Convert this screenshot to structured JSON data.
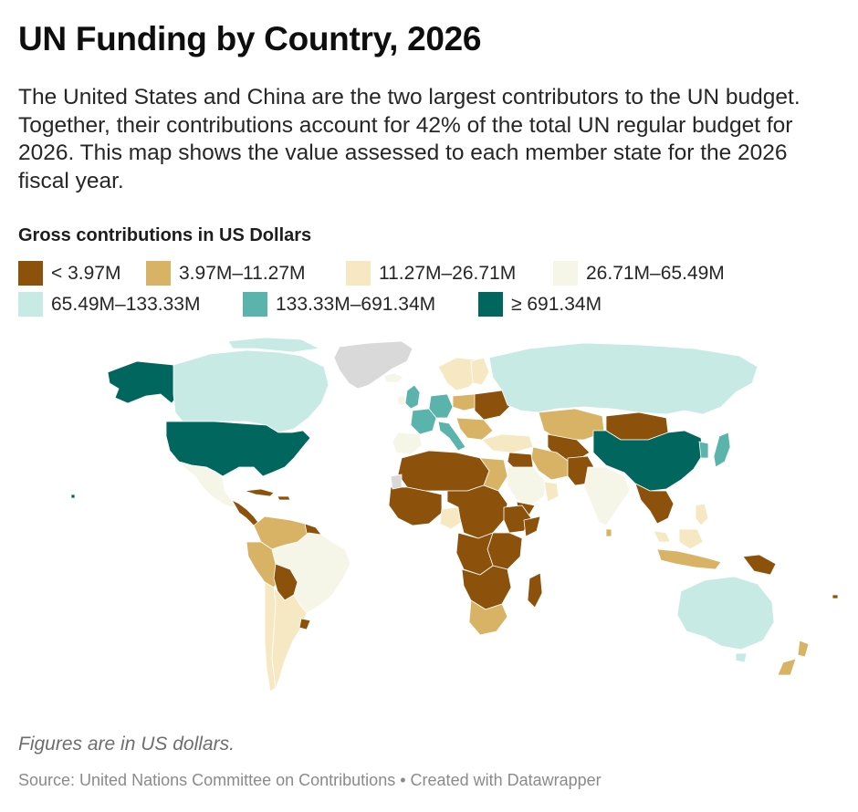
{
  "header": {
    "title": "UN Funding by Country, 2026",
    "description": "The United States and China are the two largest contributors to the UN budget. Together, their contributions account for 42% of the total UN regular budget for 2026. This map shows the value assessed to each member state for the 2026 fiscal year."
  },
  "legend": {
    "title": "Gross contributions in US Dollars",
    "items": [
      {
        "label": "< 3.97M",
        "color": "#8c510a"
      },
      {
        "label": "3.97M–11.27M",
        "color": "#d8b365"
      },
      {
        "label": "11.27M–26.71M",
        "color": "#f6e8c3"
      },
      {
        "label": "26.71M–65.49M",
        "color": "#f5f5e8"
      },
      {
        "label": "65.49M–133.33M",
        "color": "#c7eae5"
      },
      {
        "label": "133.33M–691.34M",
        "color": "#5ab4ac"
      },
      {
        "label": "≥ 691.34M",
        "color": "#01665e"
      }
    ],
    "no_data_color": "#d9d9d9"
  },
  "map": {
    "regions": [
      {
        "name": "United States",
        "class": 6
      },
      {
        "name": "China",
        "class": 6
      },
      {
        "name": "Canada",
        "class": 4
      },
      {
        "name": "Russia",
        "class": 4
      },
      {
        "name": "Australia",
        "class": 4
      },
      {
        "name": "Japan",
        "class": 5
      },
      {
        "name": "Germany",
        "class": 5
      },
      {
        "name": "United Kingdom",
        "class": 5
      },
      {
        "name": "France",
        "class": 5
      },
      {
        "name": "Italy",
        "class": 5
      },
      {
        "name": "Brazil",
        "class": 3
      },
      {
        "name": "India",
        "class": 3
      },
      {
        "name": "Mexico",
        "class": 3
      },
      {
        "name": "Saudi Arabia",
        "class": 3
      },
      {
        "name": "Argentina",
        "class": 2
      },
      {
        "name": "Kazakhstan",
        "class": 1
      },
      {
        "name": "Iran",
        "class": 1
      },
      {
        "name": "Egypt",
        "class": 1
      },
      {
        "name": "Nigeria",
        "class": 1
      },
      {
        "name": "South Africa",
        "class": 1
      },
      {
        "name": "Indonesia",
        "class": 2
      },
      {
        "name": "New Zealand",
        "class": 1
      },
      {
        "name": "Greenland",
        "class": 7
      },
      {
        "name": "Africa (most)",
        "class": 0
      },
      {
        "name": "Mongolia",
        "class": 0
      },
      {
        "name": "Central Asia",
        "class": 0
      },
      {
        "name": "Southeast Asia mainland",
        "class": 0
      },
      {
        "name": "Andean South America",
        "class": 0
      },
      {
        "name": "Papua New Guinea",
        "class": 0
      },
      {
        "name": "Madagascar",
        "class": 0
      }
    ]
  },
  "footer": {
    "note": "Figures are in US dollars.",
    "source": "Source: United Nations Committee on Contributions",
    "separator": "•",
    "credit": "Created with Datawrapper"
  }
}
